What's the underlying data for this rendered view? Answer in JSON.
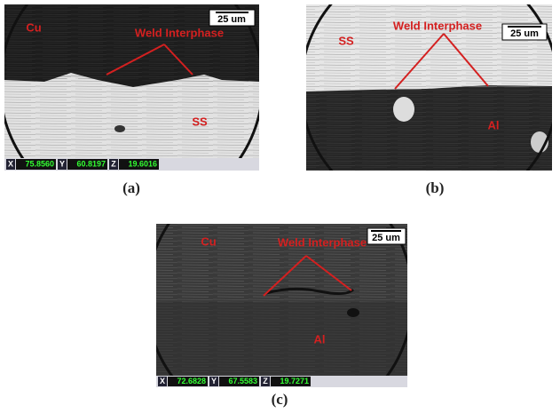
{
  "panels": [
    {
      "caption": "(a)",
      "scale_bar": "25 um",
      "labels": [
        {
          "text": "Cu"
        },
        {
          "text": "Weld Interphase"
        },
        {
          "text": "SS"
        }
      ],
      "readout": [
        {
          "axis": "X",
          "value": "75.8560"
        },
        {
          "axis": "Y",
          "value": "60.8197"
        },
        {
          "axis": "Z",
          "value": "19.6016"
        }
      ]
    },
    {
      "caption": "(b)",
      "scale_bar": "25 um",
      "labels": [
        {
          "text": "SS"
        },
        {
          "text": "Weld Interphase"
        },
        {
          "text": "Al"
        }
      ]
    },
    {
      "caption": "(c)",
      "scale_bar": "25 um",
      "labels": [
        {
          "text": "Cu"
        },
        {
          "text": "Weld Interphase"
        },
        {
          "text": "Al"
        }
      ],
      "readout": [
        {
          "axis": "X",
          "value": "72.6828"
        },
        {
          "axis": "Y",
          "value": "67.5583"
        },
        {
          "axis": "Z",
          "value": "19.7271"
        }
      ]
    }
  ]
}
